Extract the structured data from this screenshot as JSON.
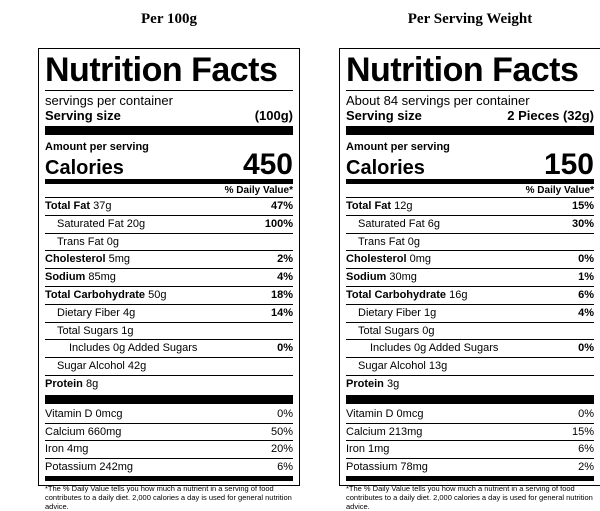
{
  "panels": [
    {
      "heading": "Per 100g",
      "title": "Nutrition Facts",
      "servings": "servings per container",
      "serving_size_label": "Serving size",
      "serving_size_value": "(100g)",
      "amount_per_serving": "Amount per serving",
      "calories_label": "Calories",
      "calories_value": "450",
      "dv_header": "% Daily Value*",
      "total_fat": {
        "label": "Total Fat",
        "amount": "37g",
        "dv": "47%"
      },
      "sat_fat": {
        "label": "Saturated Fat 20g",
        "dv": "100%"
      },
      "trans_fat": {
        "label": "Trans Fat 0g"
      },
      "cholesterol": {
        "label": "Cholesterol",
        "amount": "5mg",
        "dv": "2%"
      },
      "sodium": {
        "label": "Sodium",
        "amount": "85mg",
        "dv": "4%"
      },
      "carb": {
        "label": "Total Carbohydrate",
        "amount": "50g",
        "dv": "18%"
      },
      "fiber": {
        "label": "Dietary Fiber 4g",
        "dv": "14%"
      },
      "sugars": {
        "label": "Total Sugars 1g"
      },
      "added_sugars": {
        "label": "Includes 0g Added Sugars",
        "dv": "0%"
      },
      "sugar_alcohol": {
        "label": "Sugar Alcohol 42g"
      },
      "protein": {
        "label": "Protein",
        "amount": "8g"
      },
      "vitamin_d": {
        "label": "Vitamin D 0mcg",
        "dv": "0%"
      },
      "calcium": {
        "label": "Calcium 660mg",
        "dv": "50%"
      },
      "iron": {
        "label": "Iron 4mg",
        "dv": "20%"
      },
      "potassium": {
        "label": "Potassium 242mg",
        "dv": "6%"
      },
      "footnote": "*The % Daily Value tells you how much a nutrient in a serving of food contributes to a daily diet. 2,000 calories a day is used for general nutrition advice."
    },
    {
      "heading": "Per Serving Weight",
      "title": "Nutrition Facts",
      "servings": "About 84 servings per container",
      "serving_size_label": "Serving size",
      "serving_size_value": "2 Pieces (32g)",
      "amount_per_serving": "Amount per serving",
      "calories_label": "Calories",
      "calories_value": "150",
      "dv_header": "% Daily Value*",
      "total_fat": {
        "label": "Total Fat",
        "amount": "12g",
        "dv": "15%"
      },
      "sat_fat": {
        "label": "Saturated Fat 6g",
        "dv": "30%"
      },
      "trans_fat": {
        "label": "Trans Fat 0g"
      },
      "cholesterol": {
        "label": "Cholesterol",
        "amount": "0mg",
        "dv": "0%"
      },
      "sodium": {
        "label": "Sodium",
        "amount": "30mg",
        "dv": "1%"
      },
      "carb": {
        "label": "Total Carbohydrate",
        "amount": "16g",
        "dv": "6%"
      },
      "fiber": {
        "label": "Dietary Fiber 1g",
        "dv": "4%"
      },
      "sugars": {
        "label": "Total Sugars 0g"
      },
      "added_sugars": {
        "label": "Includes 0g Added Sugars",
        "dv": "0%"
      },
      "sugar_alcohol": {
        "label": "Sugar Alcohol 13g"
      },
      "protein": {
        "label": "Protein",
        "amount": "3g"
      },
      "vitamin_d": {
        "label": "Vitamin D 0mcg",
        "dv": "0%"
      },
      "calcium": {
        "label": "Calcium 213mg",
        "dv": "15%"
      },
      "iron": {
        "label": "Iron 1mg",
        "dv": "6%"
      },
      "potassium": {
        "label": "Potassium 78mg",
        "dv": "2%"
      },
      "footnote": "*The % Daily Value tells you how much a nutrient in a serving of food contributes to a daily diet. 2,000 calories a day is used for general nutrition advice."
    }
  ]
}
